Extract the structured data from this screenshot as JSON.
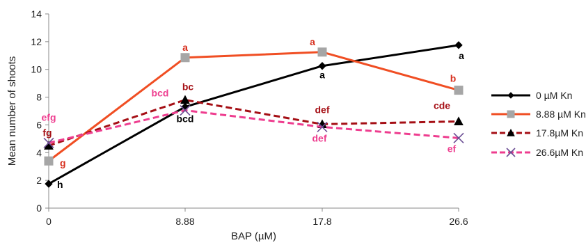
{
  "chart_data": {
    "type": "line",
    "title": "",
    "xlabel": "BAP (µM)",
    "ylabel": "Mean number of shoots",
    "x": [
      "0",
      "8.88",
      "17.8",
      "26.6"
    ],
    "ylim": [
      0,
      14
    ],
    "yticks": [
      0,
      2,
      4,
      6,
      8,
      10,
      12,
      14
    ],
    "grid": false,
    "legend_position": "right",
    "series": [
      {
        "name": "0 µM Kn",
        "color": "#000000",
        "marker": "diamond",
        "dash": "solid",
        "values": [
          1.75,
          7.3,
          10.25,
          11.75
        ],
        "labels": [
          "h",
          "bcd",
          "a",
          "a"
        ]
      },
      {
        "name": "8.88 µM Kn",
        "color": "#f04e23",
        "marker": "square",
        "dash": "solid",
        "values": [
          3.4,
          10.85,
          11.25,
          8.5
        ],
        "labels": [
          "g",
          "a",
          "a",
          "b"
        ]
      },
      {
        "name": "17.8µM Kn",
        "color": "#a50f15",
        "marker": "triangle",
        "dash": "dashed",
        "values": [
          4.5,
          7.8,
          6.05,
          6.25
        ],
        "labels": [
          "fg",
          "bc",
          "def",
          "cde"
        ]
      },
      {
        "name": "26.6µM Kn",
        "color": "#ee3d8f",
        "marker": "x",
        "dash": "dashed",
        "values": [
          4.7,
          7.05,
          5.85,
          5.05
        ],
        "labels": [
          "efg",
          "bcd",
          "def",
          "ef"
        ]
      }
    ]
  }
}
